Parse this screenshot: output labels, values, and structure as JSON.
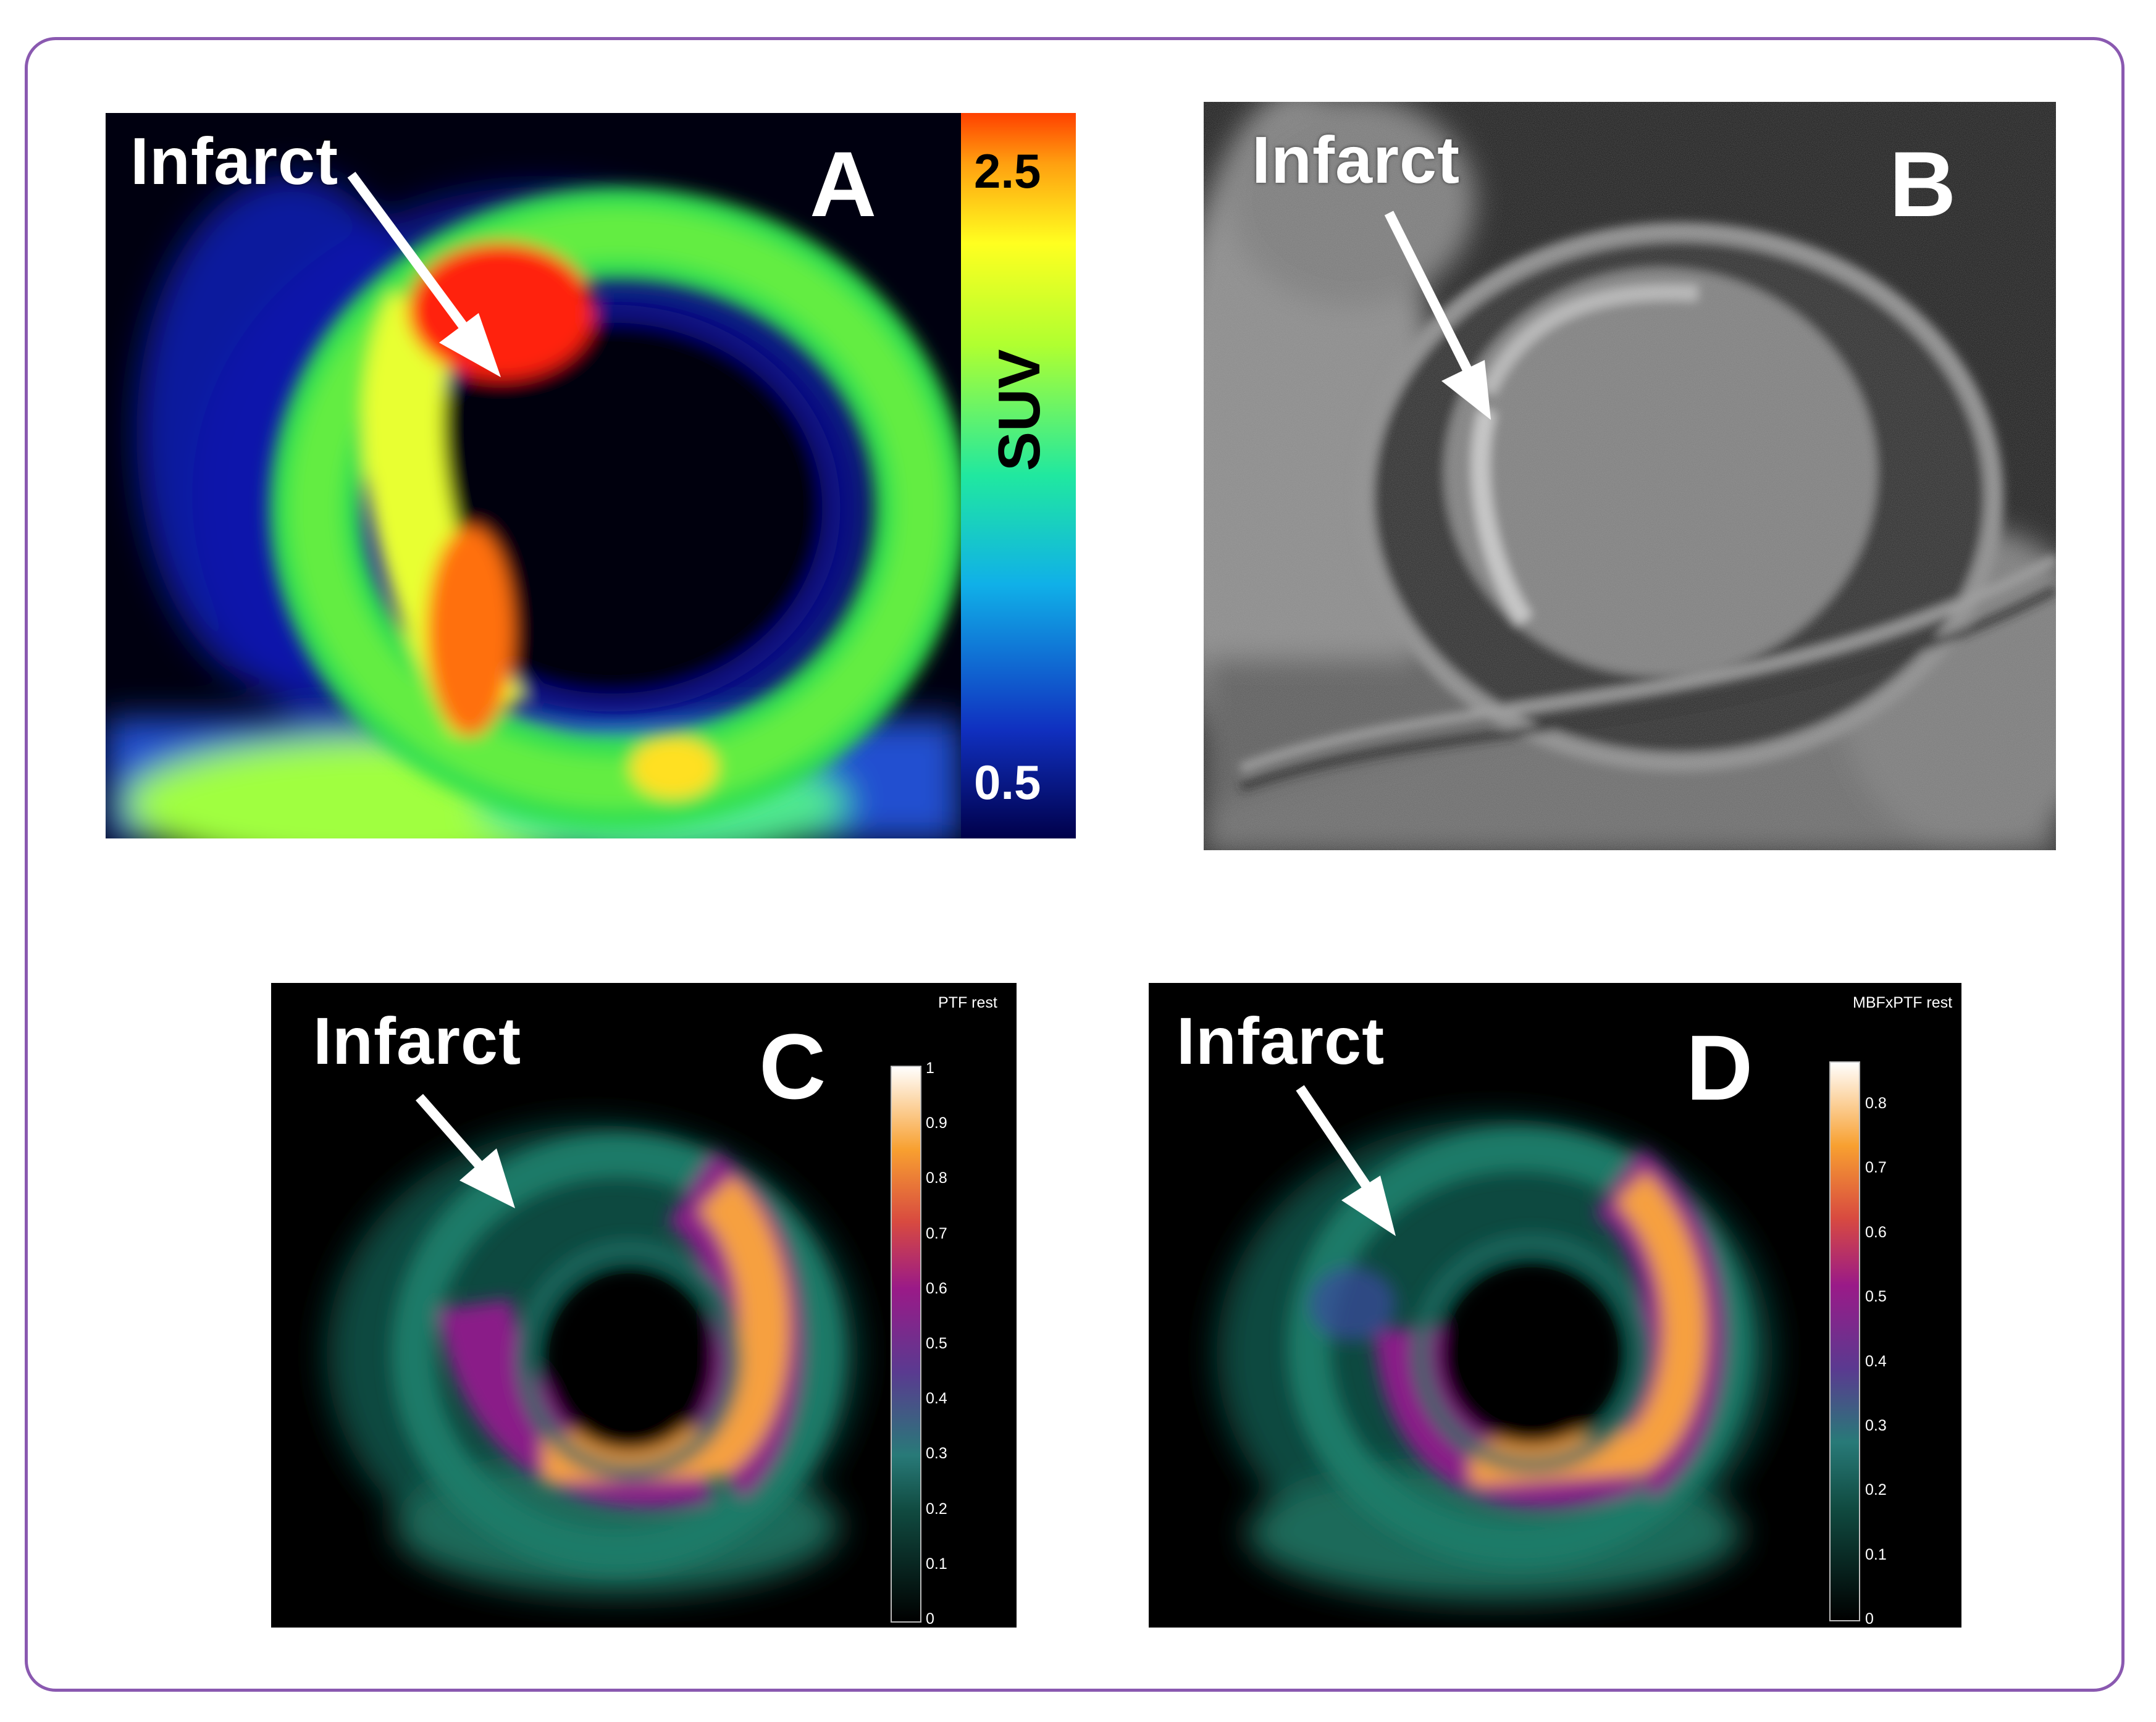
{
  "panels": [
    {
      "id": "A",
      "letter": "A",
      "annotation": "Infarct",
      "colorbar": {
        "label": "SUV",
        "max_label": "2.5",
        "min_label": "0.5",
        "max": 2.5,
        "min": 0.5
      }
    },
    {
      "id": "B",
      "letter": "B",
      "annotation": "Infarct"
    },
    {
      "id": "C",
      "letter": "C",
      "annotation": "Infarct",
      "colorbar": {
        "title": "PTF rest",
        "ticks": [
          "1",
          "0.9",
          "0.8",
          "0.7",
          "0.6",
          "0.5",
          "0.4",
          "0.3",
          "0.2",
          "0.1",
          "0"
        ]
      }
    },
    {
      "id": "D",
      "letter": "D",
      "annotation": "Infarct",
      "colorbar": {
        "title": "MBFxPTF rest",
        "ticks": [
          "0.8",
          "0.7",
          "0.6",
          "0.5",
          "0.4",
          "0.3",
          "0.2",
          "0.1",
          "0"
        ]
      }
    }
  ],
  "colors": {
    "frame_border": "#8a59b0",
    "jet_low": "#000080",
    "jet_high": "#ff3000",
    "ptf_low": "#00402f",
    "ptf_mid": "#8a1a88",
    "ptf_high": "#ffffff"
  }
}
